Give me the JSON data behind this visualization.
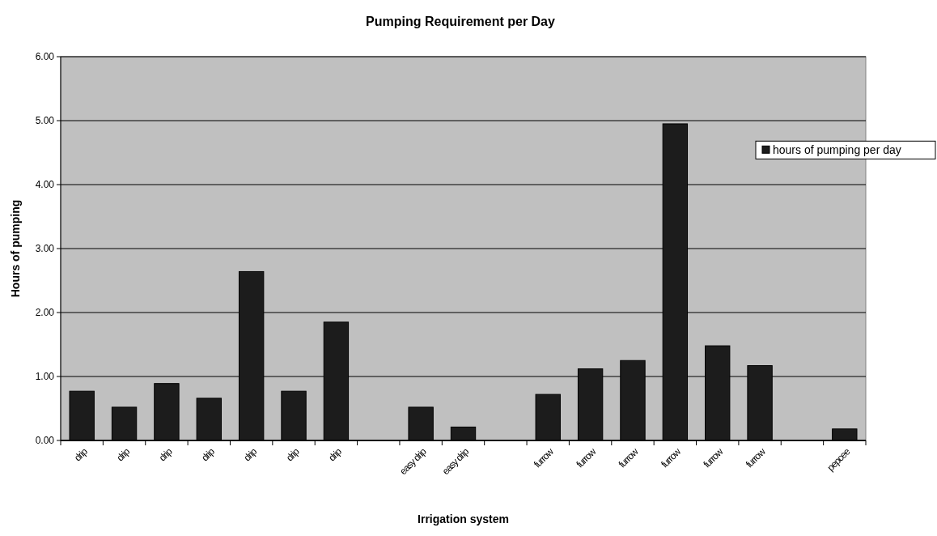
{
  "chart_data": {
    "type": "bar",
    "title": "Pumping Requirement per Day",
    "xlabel": "Irrigation system",
    "ylabel": "Hours of pumping",
    "categories": [
      "drip",
      "drip",
      "drip",
      "drip",
      "drip",
      "drip",
      "drip",
      null,
      "easy drip",
      "easy drip",
      null,
      "furrow",
      "furrow",
      "furrow",
      "furrow",
      "furrow",
      "furrow",
      null,
      "pepcee"
    ],
    "series": [
      {
        "name": "hours of pumping per day",
        "color": "#1c1c1c",
        "values": [
          0.77,
          0.52,
          0.89,
          0.66,
          2.64,
          0.77,
          1.85,
          null,
          0.52,
          0.21,
          null,
          0.72,
          1.12,
          1.25,
          4.95,
          1.48,
          1.17,
          null,
          0.18
        ]
      }
    ],
    "ylim": [
      0,
      6
    ],
    "yticks": [
      {
        "value": 0,
        "label": "0.00"
      },
      {
        "value": 1,
        "label": "1.00"
      },
      {
        "value": 2,
        "label": "2.00"
      },
      {
        "value": 3,
        "label": "3.00"
      },
      {
        "value": 4,
        "label": "4.00"
      },
      {
        "value": 5,
        "label": "5.00"
      },
      {
        "value": 6,
        "label": "6.00"
      }
    ],
    "grid": "y",
    "legend": "right"
  }
}
